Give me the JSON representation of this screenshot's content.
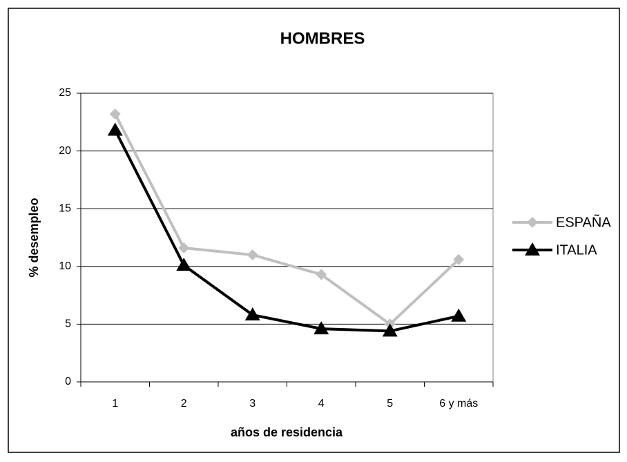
{
  "chart_data": {
    "type": "line",
    "title": "HOMBRES",
    "x_label": "años de residencia",
    "y_label": "% desempleo",
    "categories": [
      "1",
      "2",
      "3",
      "4",
      "5",
      "6 y más"
    ],
    "series": [
      {
        "name": "ESPAÑA",
        "color": "#c0c0c0",
        "marker": "diamond",
        "values": [
          23.2,
          11.6,
          11.0,
          9.3,
          5.0,
          10.6
        ]
      },
      {
        "name": "ITALIA",
        "color": "#000000",
        "marker": "triangle",
        "values": [
          21.8,
          10.1,
          5.8,
          4.6,
          4.4,
          5.7
        ]
      }
    ],
    "ylim": [
      0,
      25
    ],
    "yticks": [
      0,
      5,
      10,
      15,
      20,
      25
    ],
    "grid": true,
    "legend": "right"
  }
}
